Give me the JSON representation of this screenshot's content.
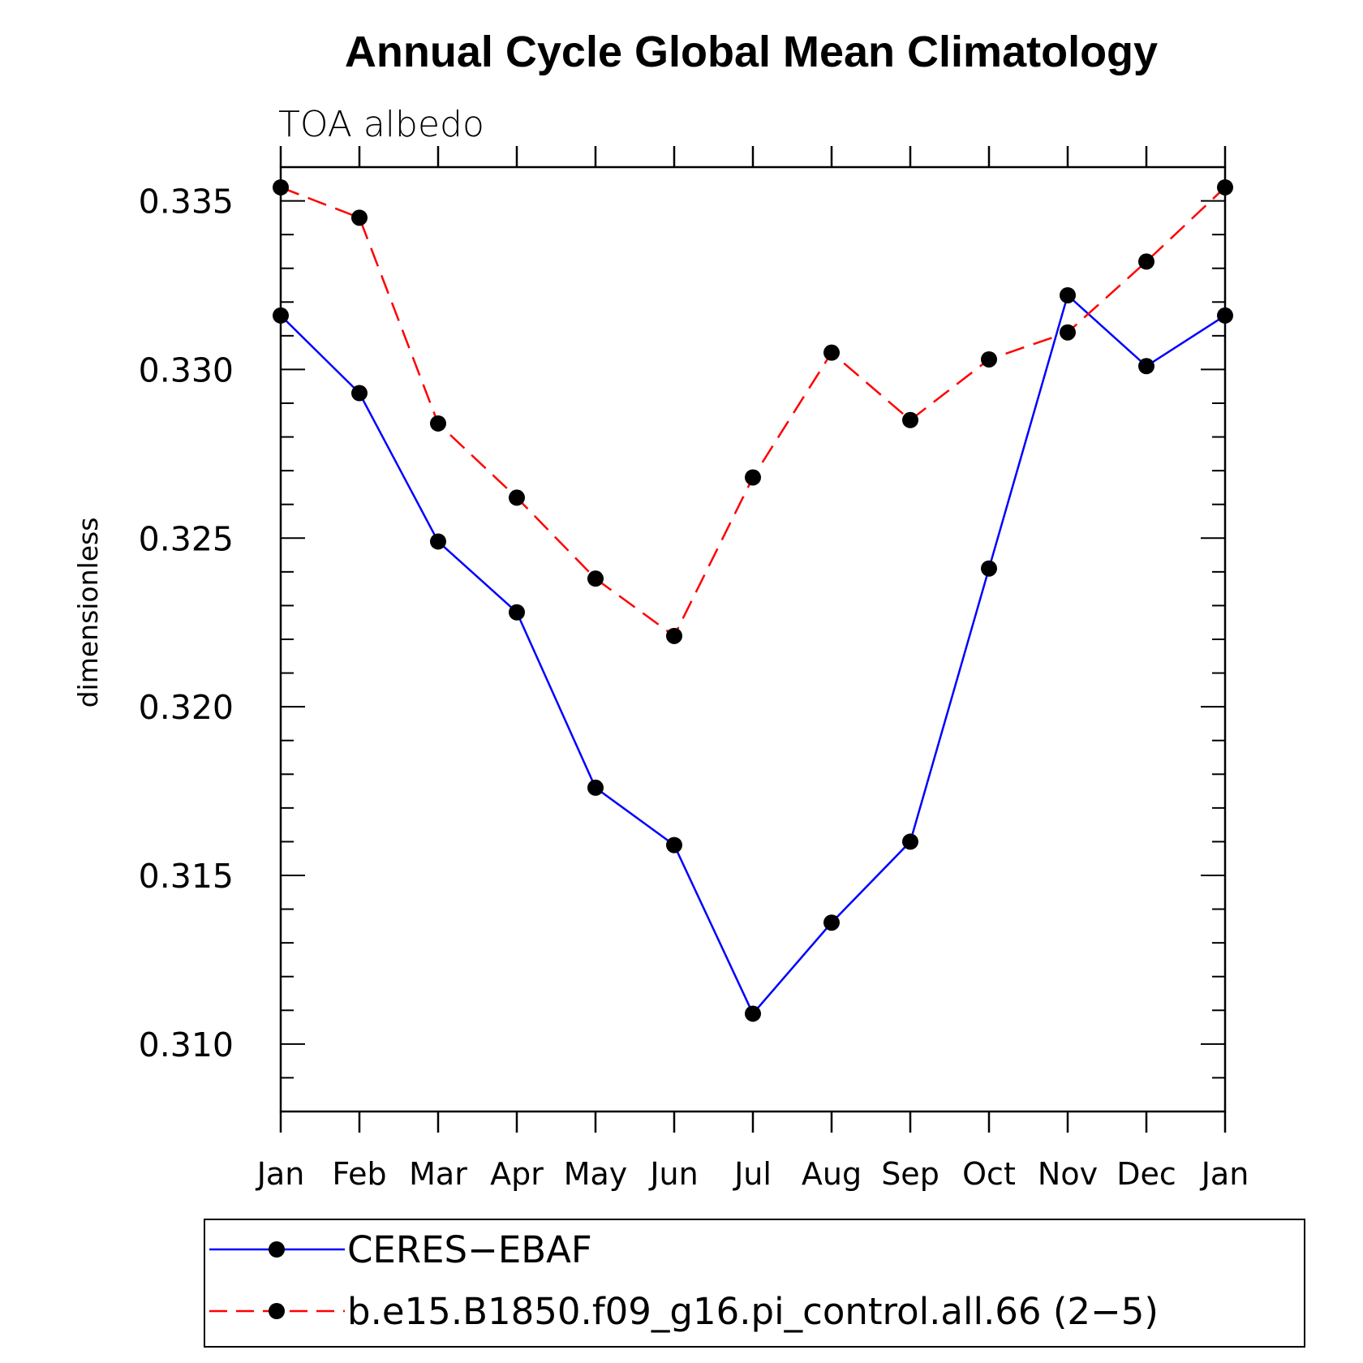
{
  "chart_data": {
    "type": "line",
    "title": "Annual Cycle Global Mean Climatology",
    "subtitle": "TOA albedo",
    "xlabel": "",
    "ylabel": "dimensionless",
    "categories": [
      "Jan",
      "Feb",
      "Mar",
      "Apr",
      "May",
      "Jun",
      "Jul",
      "Aug",
      "Sep",
      "Oct",
      "Nov",
      "Dec",
      "Jan"
    ],
    "ylim": [
      0.308,
      0.336
    ],
    "yticks": [
      0.31,
      0.315,
      0.32,
      0.325,
      0.33,
      0.335
    ],
    "ytick_labels": [
      "0.310",
      "0.315",
      "0.320",
      "0.325",
      "0.330",
      "0.335"
    ],
    "legend_position": "bottom",
    "series": [
      {
        "name": "CERES−EBAF",
        "color": "#0000ff",
        "style": "solid",
        "values": [
          0.3316,
          0.3293,
          0.3249,
          0.3228,
          0.3176,
          0.3159,
          0.3109,
          0.3136,
          0.316,
          0.3241,
          0.3322,
          0.3301,
          0.3316
        ]
      },
      {
        "name": "b.e15.B1850.f09_g16.pi_control.all.66 (2−5)",
        "color": "#ff0000",
        "style": "dashed",
        "values": [
          0.3354,
          0.3345,
          0.3284,
          0.3262,
          0.3238,
          0.3221,
          0.3268,
          0.3305,
          0.3285,
          0.3303,
          0.3311,
          0.3332,
          0.3354
        ]
      }
    ]
  }
}
